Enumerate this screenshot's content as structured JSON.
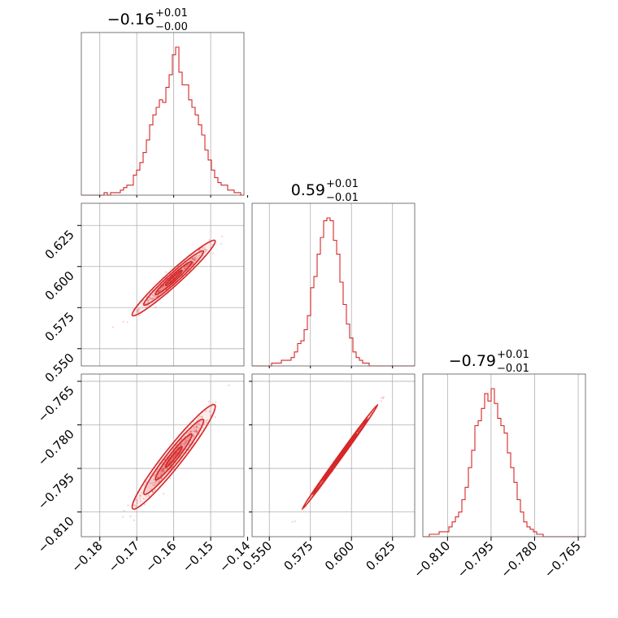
{
  "chart_data": {
    "type": "corner",
    "color": "#d62728",
    "parameters": [
      {
        "title_value": "−0.16",
        "title_plus": "+0.01",
        "title_minus": "−0.00",
        "range": [
          -0.185,
          -0.141
        ],
        "ticks": [
          -0.18,
          -0.17,
          -0.16,
          -0.15,
          -0.14
        ],
        "tick_labels": [
          "−0.18",
          "−0.17",
          "−0.16",
          "−0.15",
          "−0.14"
        ],
        "hist_edges_start": -0.185,
        "hist_bin_width": 0.00088,
        "hist_counts": [
          0,
          0,
          0,
          0,
          0,
          0,
          0,
          1,
          0,
          1,
          1,
          1,
          2,
          3,
          4,
          4,
          8,
          10,
          13,
          17,
          22,
          28,
          32,
          35,
          38,
          37,
          43,
          48,
          56,
          59,
          49,
          44,
          44,
          38,
          35,
          32,
          28,
          24,
          18,
          14,
          10,
          7,
          5,
          4,
          4,
          2,
          2,
          1,
          1,
          0
        ]
      },
      {
        "title_value": "0.59",
        "title_plus": "+0.01",
        "title_minus": "−0.01",
        "range": [
          0.5395,
          0.6385
        ],
        "ticks": [
          0.55,
          0.575,
          0.6,
          0.625
        ],
        "tick_labels": [
          "0.550",
          "0.575",
          "0.600",
          "0.625"
        ],
        "hist_edges_start": 0.5395,
        "hist_bin_width": 0.00198,
        "hist_counts": [
          0,
          0,
          0,
          0,
          0,
          0,
          1,
          1,
          1,
          2,
          2,
          2,
          3,
          5,
          8,
          9,
          13,
          18,
          28,
          32,
          40,
          46,
          52,
          53,
          52,
          45,
          40,
          30,
          22,
          15,
          10,
          5,
          3,
          2,
          1,
          1,
          0,
          0,
          0,
          0,
          0,
          0,
          0,
          0,
          0,
          0,
          0,
          0,
          0,
          0
        ]
      },
      {
        "title_value": "−0.79",
        "title_plus": "+0.01",
        "title_minus": "−0.01",
        "range": [
          -0.8185,
          -0.7625
        ],
        "ticks": [
          -0.81,
          -0.795,
          -0.78,
          -0.765
        ],
        "tick_labels": [
          "−0.810",
          "−0.795",
          "−0.780",
          "−0.765"
        ],
        "hist_edges_start": -0.8185,
        "hist_bin_width": 0.00112,
        "hist_counts": [
          0,
          0,
          1,
          1,
          1,
          2,
          2,
          2,
          4,
          6,
          8,
          10,
          15,
          20,
          28,
          35,
          45,
          47,
          52,
          58,
          55,
          60,
          54,
          48,
          45,
          42,
          34,
          28,
          22,
          15,
          10,
          6,
          4,
          3,
          2,
          1,
          1,
          0,
          0,
          0,
          0,
          0,
          0,
          0,
          0,
          0,
          0,
          0,
          0,
          0
        ]
      }
    ],
    "pairs": [
      {
        "x_param": 0,
        "y_param": 1,
        "center": [
          -0.16,
          0.593
        ],
        "sigma": [
          0.0045,
          0.0092
        ],
        "rho": 0.97
      },
      {
        "x_param": 0,
        "y_param": 2,
        "center": [
          -0.16,
          -0.791
        ],
        "sigma": [
          0.0045,
          0.0072
        ],
        "rho": 0.96
      },
      {
        "x_param": 1,
        "y_param": 2,
        "center": [
          0.593,
          -0.791
        ],
        "sigma": [
          0.0092,
          0.0072
        ],
        "rho": 0.998
      }
    ],
    "grid": true
  }
}
